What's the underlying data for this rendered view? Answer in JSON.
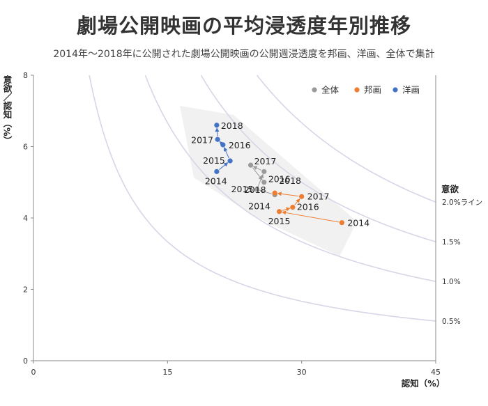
{
  "title": "劇場公開映画の平均浸透度年別推移",
  "subtitle": "2014年～2018年に公開された劇場公開映画の公開週浸透度を邦画、洋画、全体で集計",
  "chart_data": {
    "type": "scatter",
    "title": "劇場公開映画の平均浸透度年別推移",
    "xlabel": "認知（%）",
    "ylabel": "意欲／認知（%）",
    "xlim": [
      0,
      45
    ],
    "ylim": [
      0,
      8
    ],
    "xticks": [
      0,
      15,
      30,
      45
    ],
    "yticks": [
      0,
      2,
      4,
      6,
      8
    ],
    "grid": false,
    "legend_position": "top-right",
    "iso_title": "意欲",
    "iso_lines": [
      {
        "value": 2.0,
        "label": "2.0%ライン"
      },
      {
        "value": 1.5,
        "label": "1.5%"
      },
      {
        "value": 1.0,
        "label": "1.0%"
      },
      {
        "value": 0.5,
        "label": "0.5%"
      }
    ],
    "series": [
      {
        "name": "全体",
        "color": "#9a9a9a",
        "points": [
          {
            "label": "2014",
            "x": 27.0,
            "y": 4.65
          },
          {
            "label": "2015",
            "x": 25.0,
            "y": 4.8
          },
          {
            "label": "2016",
            "x": 25.8,
            "y": 5.3
          },
          {
            "label": "2017",
            "x": 24.3,
            "y": 5.48
          },
          {
            "label": "2018",
            "x": 25.8,
            "y": 5.0
          }
        ]
      },
      {
        "name": "邦画",
        "color": "#ed7d31",
        "points": [
          {
            "label": "2014",
            "x": 34.5,
            "y": 3.87
          },
          {
            "label": "2015",
            "x": 27.5,
            "y": 4.18
          },
          {
            "label": "2016",
            "x": 29.0,
            "y": 4.3
          },
          {
            "label": "2017",
            "x": 30.0,
            "y": 4.6
          },
          {
            "label": "2018",
            "x": 27.0,
            "y": 4.7
          }
        ]
      },
      {
        "name": "洋画",
        "color": "#4472c4",
        "points": [
          {
            "label": "2014",
            "x": 20.5,
            "y": 5.3
          },
          {
            "label": "2015",
            "x": 22.0,
            "y": 5.6
          },
          {
            "label": "2016",
            "x": 21.2,
            "y": 6.05
          },
          {
            "label": "2017",
            "x": 20.6,
            "y": 6.2
          },
          {
            "label": "2018",
            "x": 20.5,
            "y": 6.6
          }
        ]
      }
    ]
  }
}
